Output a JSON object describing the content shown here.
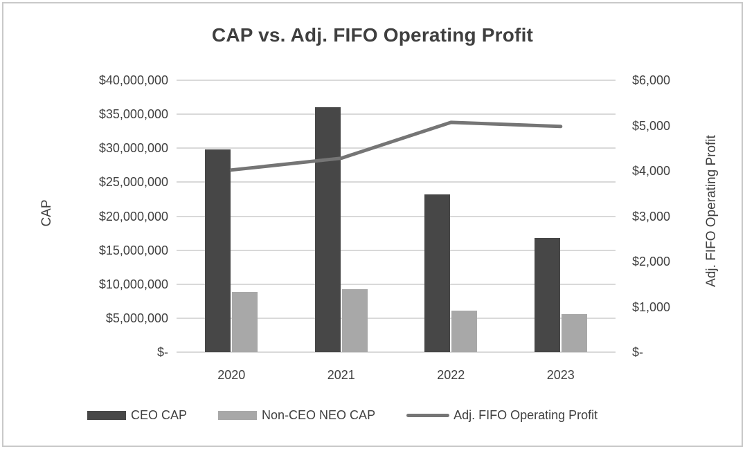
{
  "title": "CAP vs. Adj. FIFO Operating Profit",
  "colors": {
    "ceo_bar": "#474747",
    "non_ceo_bar": "#a8a8a8",
    "line": "#757575",
    "gridline": "#d9d9d9",
    "text": "#404040",
    "frame_border": "#c9c9c9"
  },
  "chart_data": {
    "type": "bar",
    "subtype": "combo-bar-line",
    "title": "CAP vs. Adj. FIFO Operating Profit",
    "categories": [
      "2020",
      "2021",
      "2022",
      "2023"
    ],
    "bar_series": [
      {
        "name": "CEO CAP",
        "axis": "left",
        "color": "#474747",
        "values": [
          29800000,
          36000000,
          23200000,
          16800000
        ]
      },
      {
        "name": "Non-CEO NEO CAP",
        "axis": "left",
        "color": "#a8a8a8",
        "values": [
          8900000,
          9300000,
          6100000,
          5600000
        ]
      }
    ],
    "line_series": [
      {
        "name": "Adj. FIFO Operating Profit",
        "axis": "right",
        "color": "#757575",
        "values": [
          4020,
          4280,
          5070,
          4980
        ]
      }
    ],
    "left_axis": {
      "title": "CAP",
      "min": 0,
      "max": 40000000,
      "step": 5000000,
      "tick_labels_top_down": [
        "$40,000,000",
        "$35,000,000",
        "$30,000,000",
        "$25,000,000",
        "$20,000,000",
        "$15,000,000",
        "$10,000,000",
        "$5,000,000",
        "$-"
      ]
    },
    "right_axis": {
      "title": "Adj. FIFO Operating Profit",
      "min": 0,
      "max": 6000,
      "step": 1000,
      "tick_labels_top_down": [
        "$6,000",
        "$5,000",
        "$4,000",
        "$3,000",
        "$2,000",
        "$1,000",
        "$-"
      ]
    },
    "gridlines": true,
    "legend_position": "bottom"
  },
  "legend": {
    "items": [
      {
        "label": "CEO CAP",
        "swatch": "bar"
      },
      {
        "label": "Non-CEO NEO CAP",
        "swatch": "bar"
      },
      {
        "label": "Adj. FIFO Operating Profit",
        "swatch": "line"
      }
    ]
  }
}
